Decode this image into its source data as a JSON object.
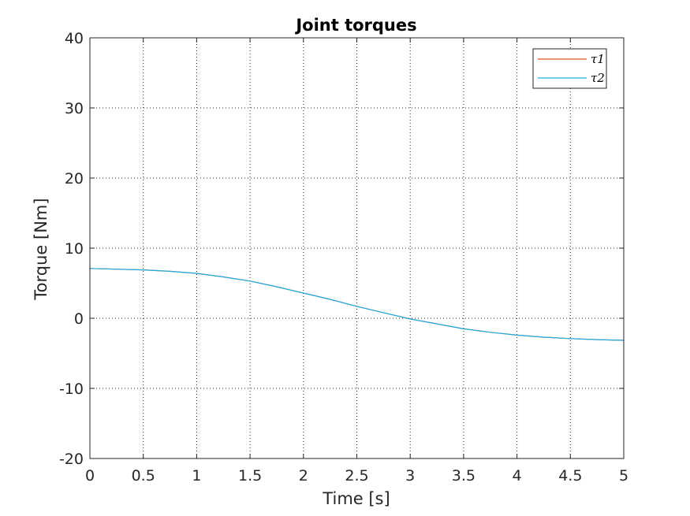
{
  "chart_data": {
    "type": "line",
    "title": "Joint torques",
    "xlabel": "Time [s]",
    "ylabel": "Torque [Nm]",
    "xlim": [
      0,
      5
    ],
    "ylim": [
      -20,
      40
    ],
    "xticks": [
      0,
      0.5,
      1,
      1.5,
      2,
      2.5,
      3,
      3.5,
      4,
      4.5,
      5
    ],
    "xtick_labels": [
      "0",
      "0.5",
      "1",
      "1.5",
      "2",
      "2.5",
      "3",
      "3.5",
      "4",
      "4.5",
      "5"
    ],
    "yticks": [
      -20,
      -10,
      0,
      10,
      20,
      30,
      40
    ],
    "ytick_labels": [
      "-20",
      "-10",
      "0",
      "10",
      "20",
      "30",
      "40"
    ],
    "grid": true,
    "legend_position": "top-right",
    "series": [
      {
        "name": "τ1",
        "color": "#d95319",
        "x": [
          0,
          0.25,
          0.5,
          0.75,
          1,
          1.25,
          1.5,
          1.75,
          2,
          2.25,
          2.5,
          2.75,
          3,
          3.25,
          3.5,
          3.75,
          4,
          4.25,
          4.5,
          4.75,
          5
        ],
        "y": [
          7.1,
          7.0,
          6.9,
          6.7,
          6.4,
          5.9,
          5.3,
          4.5,
          3.6,
          2.7,
          1.7,
          0.8,
          -0.1,
          -0.8,
          -1.5,
          -2.0,
          -2.4,
          -2.7,
          -2.9,
          -3.05,
          -3.15
        ]
      },
      {
        "name": "τ2",
        "color": "#1eaee8",
        "x": [
          0,
          0.25,
          0.5,
          0.75,
          1,
          1.25,
          1.5,
          1.75,
          2,
          2.25,
          2.5,
          2.75,
          3,
          3.25,
          3.5,
          3.75,
          4,
          4.25,
          4.5,
          4.75,
          5
        ],
        "y": [
          7.1,
          7.0,
          6.9,
          6.7,
          6.4,
          5.9,
          5.3,
          4.5,
          3.6,
          2.7,
          1.7,
          0.8,
          -0.1,
          -0.8,
          -1.5,
          -2.0,
          -2.4,
          -2.7,
          -2.9,
          -3.05,
          -3.15
        ]
      }
    ]
  }
}
